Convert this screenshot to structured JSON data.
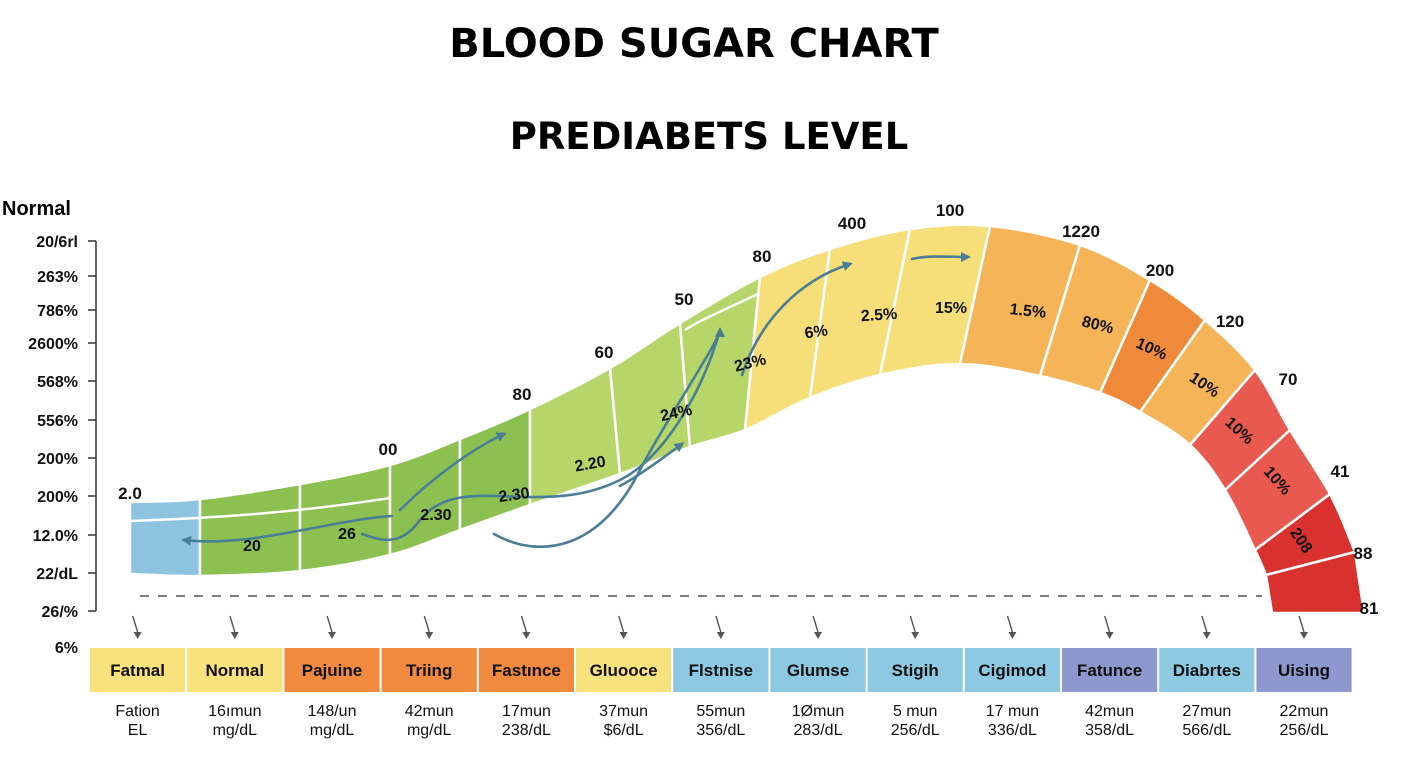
{
  "chart_data": {
    "type": "area",
    "title": "BLOOD SUGAR CHART",
    "subtitle": "PREDIABETS LEVEL",
    "ylabel": "Normal",
    "y_tick_labels": [
      "20/6rl",
      "263%",
      "786%",
      "2600%",
      "568%",
      "556%",
      "200%",
      "200%",
      "12.0%",
      "22/dL",
      "26/%",
      "6%"
    ],
    "band_numbers": [
      "2.0",
      "00",
      "80",
      "60",
      "50",
      "80",
      "400",
      "100",
      "1220",
      "200",
      "120",
      "70",
      "41",
      "88",
      "81"
    ],
    "segment_labels": [
      "20",
      "26",
      "2.30",
      "2.30",
      "2.20",
      "24%",
      "23%",
      "6%",
      "2.5%",
      "15%",
      "1.5%",
      "80%",
      "10%",
      "10%",
      "10%",
      "10%",
      "208"
    ],
    "categories": [
      {
        "name": "Fatmal",
        "color": "#F7E27D",
        "line1": "Fation",
        "line2": "EL"
      },
      {
        "name": "Normal",
        "color": "#F7E27D",
        "line1": "16ımun",
        "line2": "mg/dL"
      },
      {
        "name": "Pajuine",
        "color": "#F08A3E",
        "line1": "148/un",
        "line2": "mg/dL"
      },
      {
        "name": "Triing",
        "color": "#F08A3E",
        "line1": "42mun",
        "line2": "mg/dL"
      },
      {
        "name": "Fastınce",
        "color": "#F08A3E",
        "line1": "17mun",
        "line2": "238/dL"
      },
      {
        "name": "Gluooce",
        "color": "#F7E27D",
        "line1": "37mun",
        "line2": "$6/dL"
      },
      {
        "name": "Flstnise",
        "color": "#8EC9E3",
        "line1": "55mun",
        "line2": "356/dL"
      },
      {
        "name": "Glumse",
        "color": "#8EC9E3",
        "line1": "1Ømun",
        "line2": "283/dL"
      },
      {
        "name": "Stigih",
        "color": "#8EC9E3",
        "line1": "5 mun",
        "line2": "256/dL"
      },
      {
        "name": "Cigimod",
        "color": "#8EC9E3",
        "line1": "17 mun",
        "line2": "336/dL"
      },
      {
        "name": "Fatunce",
        "color": "#8E98CE",
        "line1": "42mun",
        "line2": "358/dL"
      },
      {
        "name": "Diabrtes",
        "color": "#8EC9E3",
        "line1": "27mun",
        "line2": "566/dL"
      },
      {
        "name": "Uising",
        "color": "#8E98CE",
        "line1": "22mun",
        "line2": "256/dL"
      }
    ],
    "colors": {
      "blue": "#8EC3E0",
      "green_dark": "#8CC152",
      "green_light": "#B6D66A",
      "yellow": "#F6DE78",
      "orange_light": "#F4B457",
      "orange": "#EE8A3A",
      "red_light": "#E85A4F",
      "red": "#D9322E",
      "arrow": "#4A7D96"
    }
  }
}
